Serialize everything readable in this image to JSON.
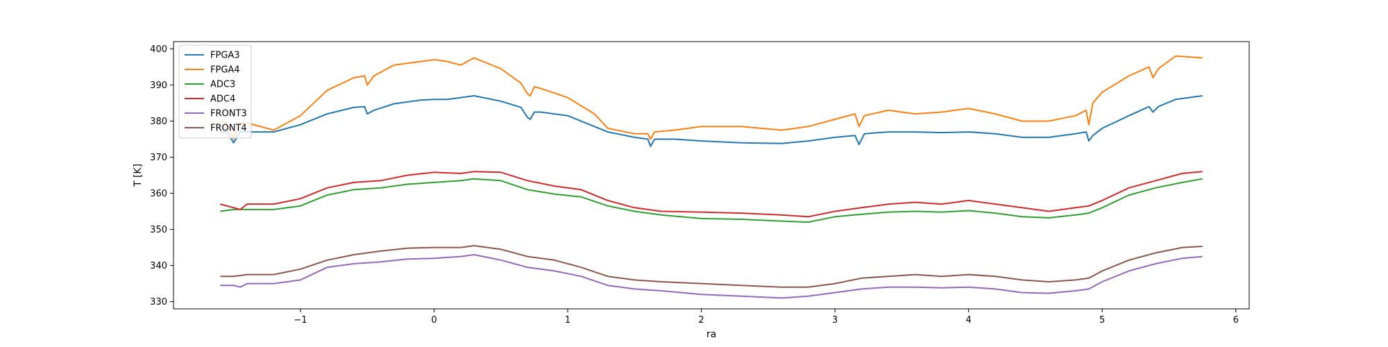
{
  "chart_data": {
    "type": "line",
    "title": "",
    "xlabel": "ra",
    "ylabel": "T [K]",
    "xlim": [
      -1.95,
      6.1
    ],
    "ylim": [
      328,
      402
    ],
    "xticks": [
      -1,
      0,
      1,
      2,
      3,
      4,
      5,
      6
    ],
    "xtick_labels": [
      "−1",
      "0",
      "1",
      "2",
      "3",
      "4",
      "5",
      "6"
    ],
    "yticks": [
      330,
      340,
      350,
      360,
      370,
      380,
      390,
      400
    ],
    "ytick_labels": [
      "330",
      "340",
      "350",
      "360",
      "370",
      "380",
      "390",
      "400"
    ],
    "grid": false,
    "legend": "top-left",
    "series": [
      {
        "name": "FPGA3",
        "color": "#1f77b4",
        "x": [
          -1.6,
          -1.55,
          -1.5,
          -1.45,
          -1.4,
          -1.2,
          -1.0,
          -0.8,
          -0.6,
          -0.52,
          -0.5,
          -0.45,
          -0.3,
          -0.1,
          0.0,
          0.1,
          0.2,
          0.3,
          0.5,
          0.65,
          0.7,
          0.72,
          0.75,
          0.8,
          1.0,
          1.2,
          1.3,
          1.5,
          1.6,
          1.62,
          1.65,
          1.8,
          2.0,
          2.3,
          2.6,
          2.8,
          3.0,
          3.15,
          3.18,
          3.22,
          3.4,
          3.6,
          3.8,
          4.0,
          4.2,
          4.4,
          4.6,
          4.8,
          4.88,
          4.9,
          4.93,
          5.0,
          5.2,
          5.35,
          5.38,
          5.42,
          5.55,
          5.75
        ],
        "y": [
          377,
          377,
          374,
          377,
          377,
          377,
          379,
          382,
          383.8,
          384,
          382,
          383,
          384.8,
          385.8,
          386,
          386,
          386.5,
          387,
          385.5,
          383.8,
          381,
          380.5,
          382.5,
          382.5,
          381.5,
          378.5,
          377,
          375.5,
          375,
          373,
          375,
          375,
          374.5,
          374,
          373.8,
          374.5,
          375.5,
          376,
          373.5,
          376.5,
          377,
          377,
          376.8,
          377,
          376.5,
          375.5,
          375.5,
          376.5,
          377,
          374.5,
          376,
          378,
          381.5,
          384,
          382.5,
          384,
          386,
          387
        ]
      },
      {
        "name": "FPGA4",
        "color": "#ff7f0e",
        "x": [
          -1.6,
          -1.55,
          -1.5,
          -1.45,
          -1.4,
          -1.2,
          -1.0,
          -0.8,
          -0.6,
          -0.52,
          -0.5,
          -0.45,
          -0.3,
          -0.1,
          0.0,
          0.1,
          0.2,
          0.3,
          0.5,
          0.65,
          0.7,
          0.72,
          0.75,
          0.8,
          1.0,
          1.2,
          1.3,
          1.5,
          1.6,
          1.62,
          1.65,
          1.8,
          2.0,
          2.3,
          2.6,
          2.8,
          3.0,
          3.15,
          3.18,
          3.22,
          3.4,
          3.6,
          3.8,
          4.0,
          4.2,
          4.4,
          4.6,
          4.8,
          4.88,
          4.9,
          4.93,
          5.0,
          5.2,
          5.35,
          5.38,
          5.42,
          5.55,
          5.75
        ],
        "y": [
          380,
          379.5,
          375,
          379.5,
          379.5,
          377.5,
          381.5,
          388.5,
          392,
          392.5,
          390,
          392.5,
          395.5,
          396.5,
          397,
          396.5,
          395.5,
          397.5,
          394.5,
          390.5,
          387.5,
          387,
          389.5,
          389,
          386.5,
          382,
          378,
          376.5,
          376.5,
          375,
          377,
          377.5,
          378.5,
          378.5,
          377.5,
          378.5,
          380.5,
          382,
          378.5,
          381.5,
          383,
          382,
          382.5,
          383.5,
          382,
          380,
          380,
          381.5,
          383,
          379,
          385,
          388,
          392.5,
          395,
          392,
          394.5,
          398,
          397.5
        ]
      },
      {
        "name": "ADC3",
        "color": "#2ca02c",
        "x": [
          -1.6,
          -1.5,
          -1.4,
          -1.2,
          -1.0,
          -0.8,
          -0.6,
          -0.4,
          -0.2,
          0.0,
          0.2,
          0.3,
          0.5,
          0.7,
          0.9,
          1.1,
          1.3,
          1.5,
          1.7,
          2.0,
          2.3,
          2.6,
          2.8,
          3.0,
          3.2,
          3.4,
          3.6,
          3.8,
          4.0,
          4.2,
          4.4,
          4.6,
          4.8,
          4.9,
          5.0,
          5.2,
          5.4,
          5.6,
          5.75
        ],
        "y": [
          355,
          355.5,
          355.5,
          355.5,
          356.5,
          359.5,
          361,
          361.5,
          362.5,
          363,
          363.5,
          364,
          363.5,
          361,
          359.8,
          359,
          356.5,
          355,
          354,
          353,
          352.8,
          352.3,
          352,
          353.5,
          354.2,
          354.8,
          355,
          354.8,
          355.2,
          354.5,
          353.5,
          353.2,
          354,
          354.5,
          356,
          359.5,
          361.5,
          363,
          364
        ]
      },
      {
        "name": "ADC4",
        "color": "#d62728",
        "x": [
          -1.6,
          -1.5,
          -1.45,
          -1.4,
          -1.2,
          -1.0,
          -0.8,
          -0.6,
          -0.4,
          -0.2,
          0.0,
          0.2,
          0.3,
          0.5,
          0.7,
          0.9,
          1.1,
          1.3,
          1.5,
          1.7,
          2.0,
          2.3,
          2.6,
          2.8,
          3.0,
          3.2,
          3.4,
          3.6,
          3.8,
          4.0,
          4.2,
          4.4,
          4.6,
          4.8,
          4.9,
          5.0,
          5.2,
          5.4,
          5.6,
          5.75
        ],
        "y": [
          357,
          356,
          355.5,
          357,
          357,
          358.5,
          361.5,
          363,
          363.5,
          365,
          365.8,
          365.5,
          366,
          365.8,
          363.5,
          362,
          361,
          358,
          356,
          355,
          354.8,
          354.5,
          354,
          353.5,
          355,
          356,
          357,
          357.5,
          357,
          358,
          357,
          356,
          355,
          356,
          356.5,
          358,
          361.5,
          363.5,
          365.5,
          366
        ]
      },
      {
        "name": "FRONT3",
        "color": "#9467bd",
        "x": [
          -1.6,
          -1.5,
          -1.45,
          -1.4,
          -1.2,
          -1.0,
          -0.8,
          -0.6,
          -0.4,
          -0.2,
          0.0,
          0.2,
          0.3,
          0.5,
          0.7,
          0.9,
          1.1,
          1.3,
          1.5,
          1.7,
          2.0,
          2.3,
          2.6,
          2.8,
          3.0,
          3.2,
          3.4,
          3.6,
          3.8,
          4.0,
          4.2,
          4.4,
          4.6,
          4.8,
          4.9,
          5.0,
          5.2,
          5.4,
          5.6,
          5.75
        ],
        "y": [
          334.5,
          334.5,
          334,
          335,
          335,
          336,
          339.5,
          340.5,
          341,
          341.8,
          342,
          342.5,
          343,
          341.5,
          339.5,
          338.5,
          337,
          334.5,
          333.5,
          333,
          332,
          331.5,
          331,
          331.5,
          332.5,
          333.5,
          334,
          334,
          333.8,
          334,
          333.5,
          332.5,
          332.3,
          333,
          333.5,
          335.5,
          338.5,
          340.5,
          342,
          342.5
        ]
      },
      {
        "name": "FRONT4",
        "color": "#8c564b",
        "x": [
          -1.6,
          -1.5,
          -1.4,
          -1.2,
          -1.0,
          -0.8,
          -0.6,
          -0.4,
          -0.2,
          0.0,
          0.2,
          0.3,
          0.5,
          0.7,
          0.9,
          1.1,
          1.3,
          1.5,
          1.7,
          2.0,
          2.3,
          2.6,
          2.8,
          3.0,
          3.2,
          3.4,
          3.6,
          3.8,
          4.0,
          4.2,
          4.4,
          4.6,
          4.8,
          4.9,
          5.0,
          5.2,
          5.4,
          5.6,
          5.75
        ],
        "y": [
          337,
          337,
          337.5,
          337.5,
          339,
          341.5,
          343,
          344,
          344.8,
          345,
          345,
          345.5,
          344.5,
          342.5,
          341.5,
          339.5,
          337,
          336,
          335.5,
          335,
          334.5,
          334,
          334,
          335,
          336.5,
          337,
          337.5,
          337,
          337.5,
          337,
          336,
          335.5,
          336,
          336.5,
          338.5,
          341.5,
          343.5,
          345,
          345.3
        ]
      }
    ]
  }
}
